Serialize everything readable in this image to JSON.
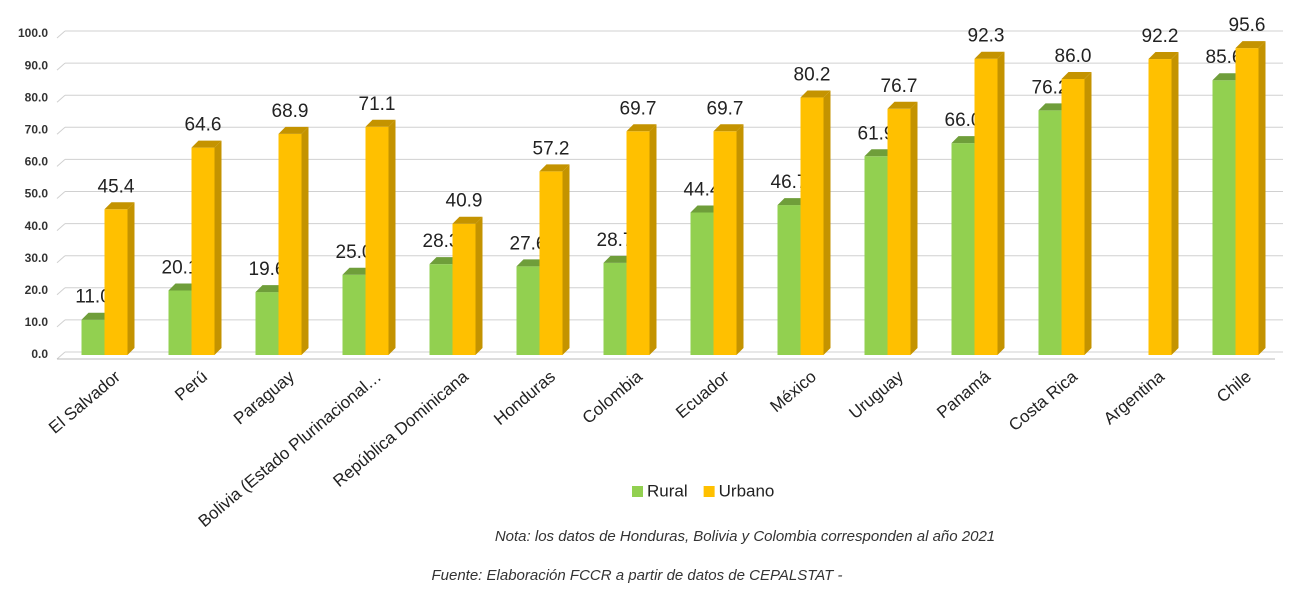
{
  "chart_data": {
    "type": "bar3d",
    "categories": [
      "El Salvador",
      "Perú",
      "Paraguay",
      "Bolivia (Estado Plurinacional…",
      "República Dominicana",
      "Honduras",
      "Colombia",
      "Ecuador",
      "México",
      "Uruguay",
      "Panamá",
      "Costa Rica",
      "Argentina",
      "Chile"
    ],
    "series": [
      {
        "name": "Rural",
        "color": "#92d050",
        "side": "#6f9e3a",
        "values": [
          11.0,
          20.1,
          19.6,
          25.0,
          28.3,
          27.6,
          28.7,
          44.4,
          46.7,
          61.9,
          66.0,
          76.2,
          null,
          85.6
        ],
        "value_labels": [
          "11.0",
          "20.1",
          "19.6",
          "25.0",
          "28.3",
          "27.6",
          "28.7",
          "44.4",
          "46.7",
          "61.9",
          "66.0",
          "76.2",
          null,
          "85.6"
        ]
      },
      {
        "name": "Urbano",
        "color": "#ffc000",
        "side": "#c49300",
        "values": [
          45.4,
          64.6,
          68.9,
          71.1,
          40.9,
          57.2,
          69.7,
          69.7,
          80.2,
          76.7,
          92.3,
          86.0,
          92.2,
          95.6
        ],
        "value_labels": [
          "45.4",
          "64.6",
          "68.9",
          "71.1",
          "40.9",
          "57.2",
          "69.7",
          "69.7",
          "80.2",
          "76.7",
          "92.3",
          "86.0",
          "92.2",
          "95.6"
        ]
      }
    ],
    "ylim": [
      0,
      100
    ],
    "yticks": [
      {
        "value": 0,
        "label": "0.0"
      },
      {
        "value": 10,
        "label": "10.0"
      },
      {
        "value": 20,
        "label": "20.0"
      },
      {
        "value": 30,
        "label": "30.0"
      },
      {
        "value": 40,
        "label": "40.0"
      },
      {
        "value": 50,
        "label": "50.0"
      },
      {
        "value": 60,
        "label": "60.0"
      },
      {
        "value": 70,
        "label": "70.0"
      },
      {
        "value": 80,
        "label": "80.0"
      },
      {
        "value": 90,
        "label": "90.0"
      },
      {
        "value": 100,
        "label": "100.0"
      }
    ],
    "grid": true,
    "legend": "bottom",
    "notes": [
      "Nota: los datos de Honduras, Bolivia y Colombia corresponden al año 2021",
      "Fuente: Elaboración FCCR a partir de datos de CEPALSTAT -"
    ]
  }
}
